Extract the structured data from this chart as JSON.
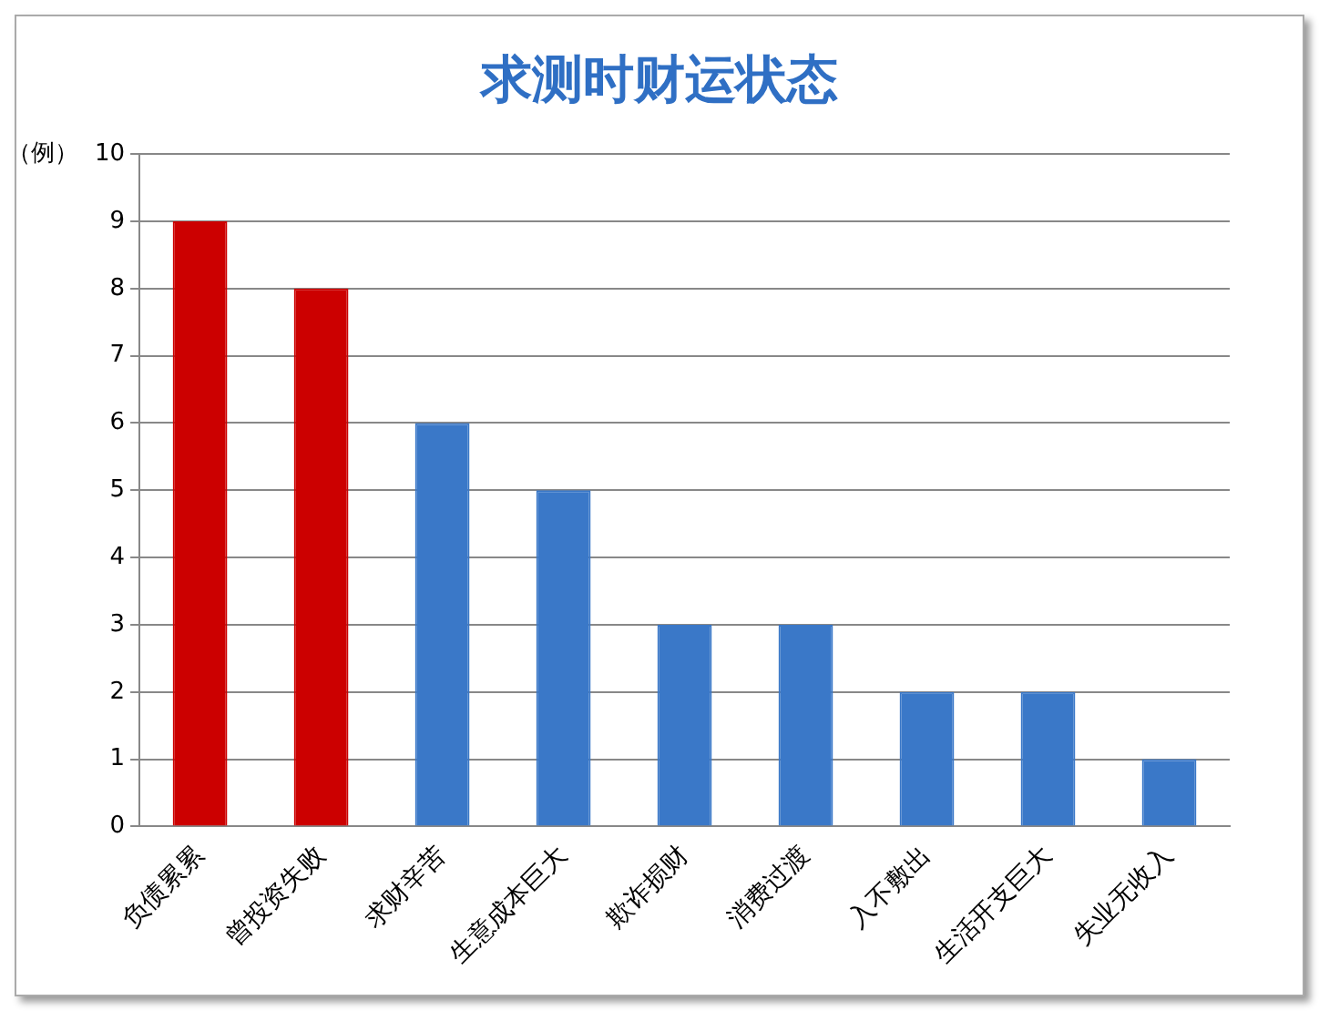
{
  "chart_data": {
    "type": "bar",
    "title": "求测时财运状态",
    "ylabel": "（例）",
    "categories": [
      "负债累累",
      "曾投资失败",
      "求财辛苦",
      "生意成本巨大",
      "欺诈损财",
      "消费过渡",
      "入不敷出",
      "生活开支巨大",
      "失业无收入"
    ],
    "values": [
      9,
      8,
      6,
      5,
      3,
      3,
      2,
      2,
      1
    ],
    "colors": [
      "#cc0000",
      "#cc0000",
      "#3a78c8",
      "#3a78c8",
      "#3a78c8",
      "#3a78c8",
      "#3a78c8",
      "#3a78c8",
      "#3a78c8"
    ],
    "ylim": [
      0,
      10
    ],
    "yticks": [
      0,
      1,
      2,
      3,
      4,
      5,
      6,
      7,
      8,
      9,
      10
    ],
    "grid": "y",
    "legend": false
  }
}
